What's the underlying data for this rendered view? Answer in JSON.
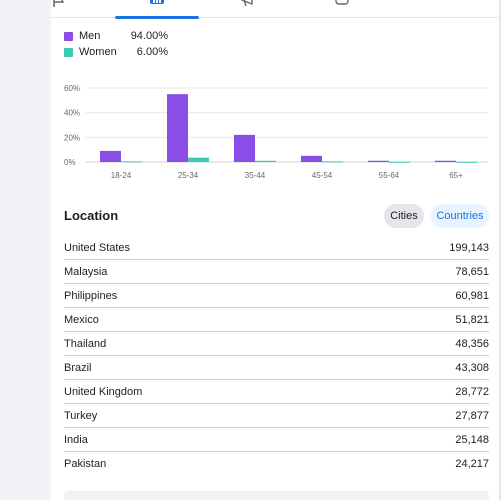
{
  "legend": [
    {
      "name": "Men",
      "value": "94.00%",
      "color": "#8a4de8"
    },
    {
      "name": "Women",
      "value": "6.00%",
      "color": "#3bc9b0"
    }
  ],
  "tabs": {
    "icons": [
      "flag-icon",
      "insights-icon",
      "megaphone-icon",
      "content-icon"
    ],
    "active": "insights-icon"
  },
  "chart_data": {
    "type": "bar",
    "categories": [
      "18-24",
      "25-34",
      "35-44",
      "45-54",
      "55-64",
      "65+"
    ],
    "series": [
      {
        "name": "Men",
        "color": "#8a4de8",
        "values": [
          9,
          55,
          22,
          5,
          1,
          1
        ]
      },
      {
        "name": "Women",
        "color": "#3bc9b0",
        "values": [
          0.5,
          3.5,
          1,
          0.5,
          0.2,
          0.2
        ]
      }
    ],
    "ytick_labels": [
      "60%",
      "40%",
      "20%",
      "0%"
    ],
    "ylim": [
      0,
      60
    ],
    "grid": true
  },
  "location": {
    "title": "Location",
    "cities_label": "Cities",
    "countries_label": "Countries",
    "rows": [
      {
        "name": "United States",
        "value": "199,143"
      },
      {
        "name": "Malaysia",
        "value": "78,651"
      },
      {
        "name": "Philippines",
        "value": "60,981"
      },
      {
        "name": "Mexico",
        "value": "51,821"
      },
      {
        "name": "Thailand",
        "value": "48,356"
      },
      {
        "name": "Brazil",
        "value": "43,308"
      },
      {
        "name": "United Kingdom",
        "value": "28,772"
      },
      {
        "name": "Turkey",
        "value": "27,877"
      },
      {
        "name": "India",
        "value": "25,148"
      },
      {
        "name": "Pakistan",
        "value": "24,217"
      }
    ]
  }
}
